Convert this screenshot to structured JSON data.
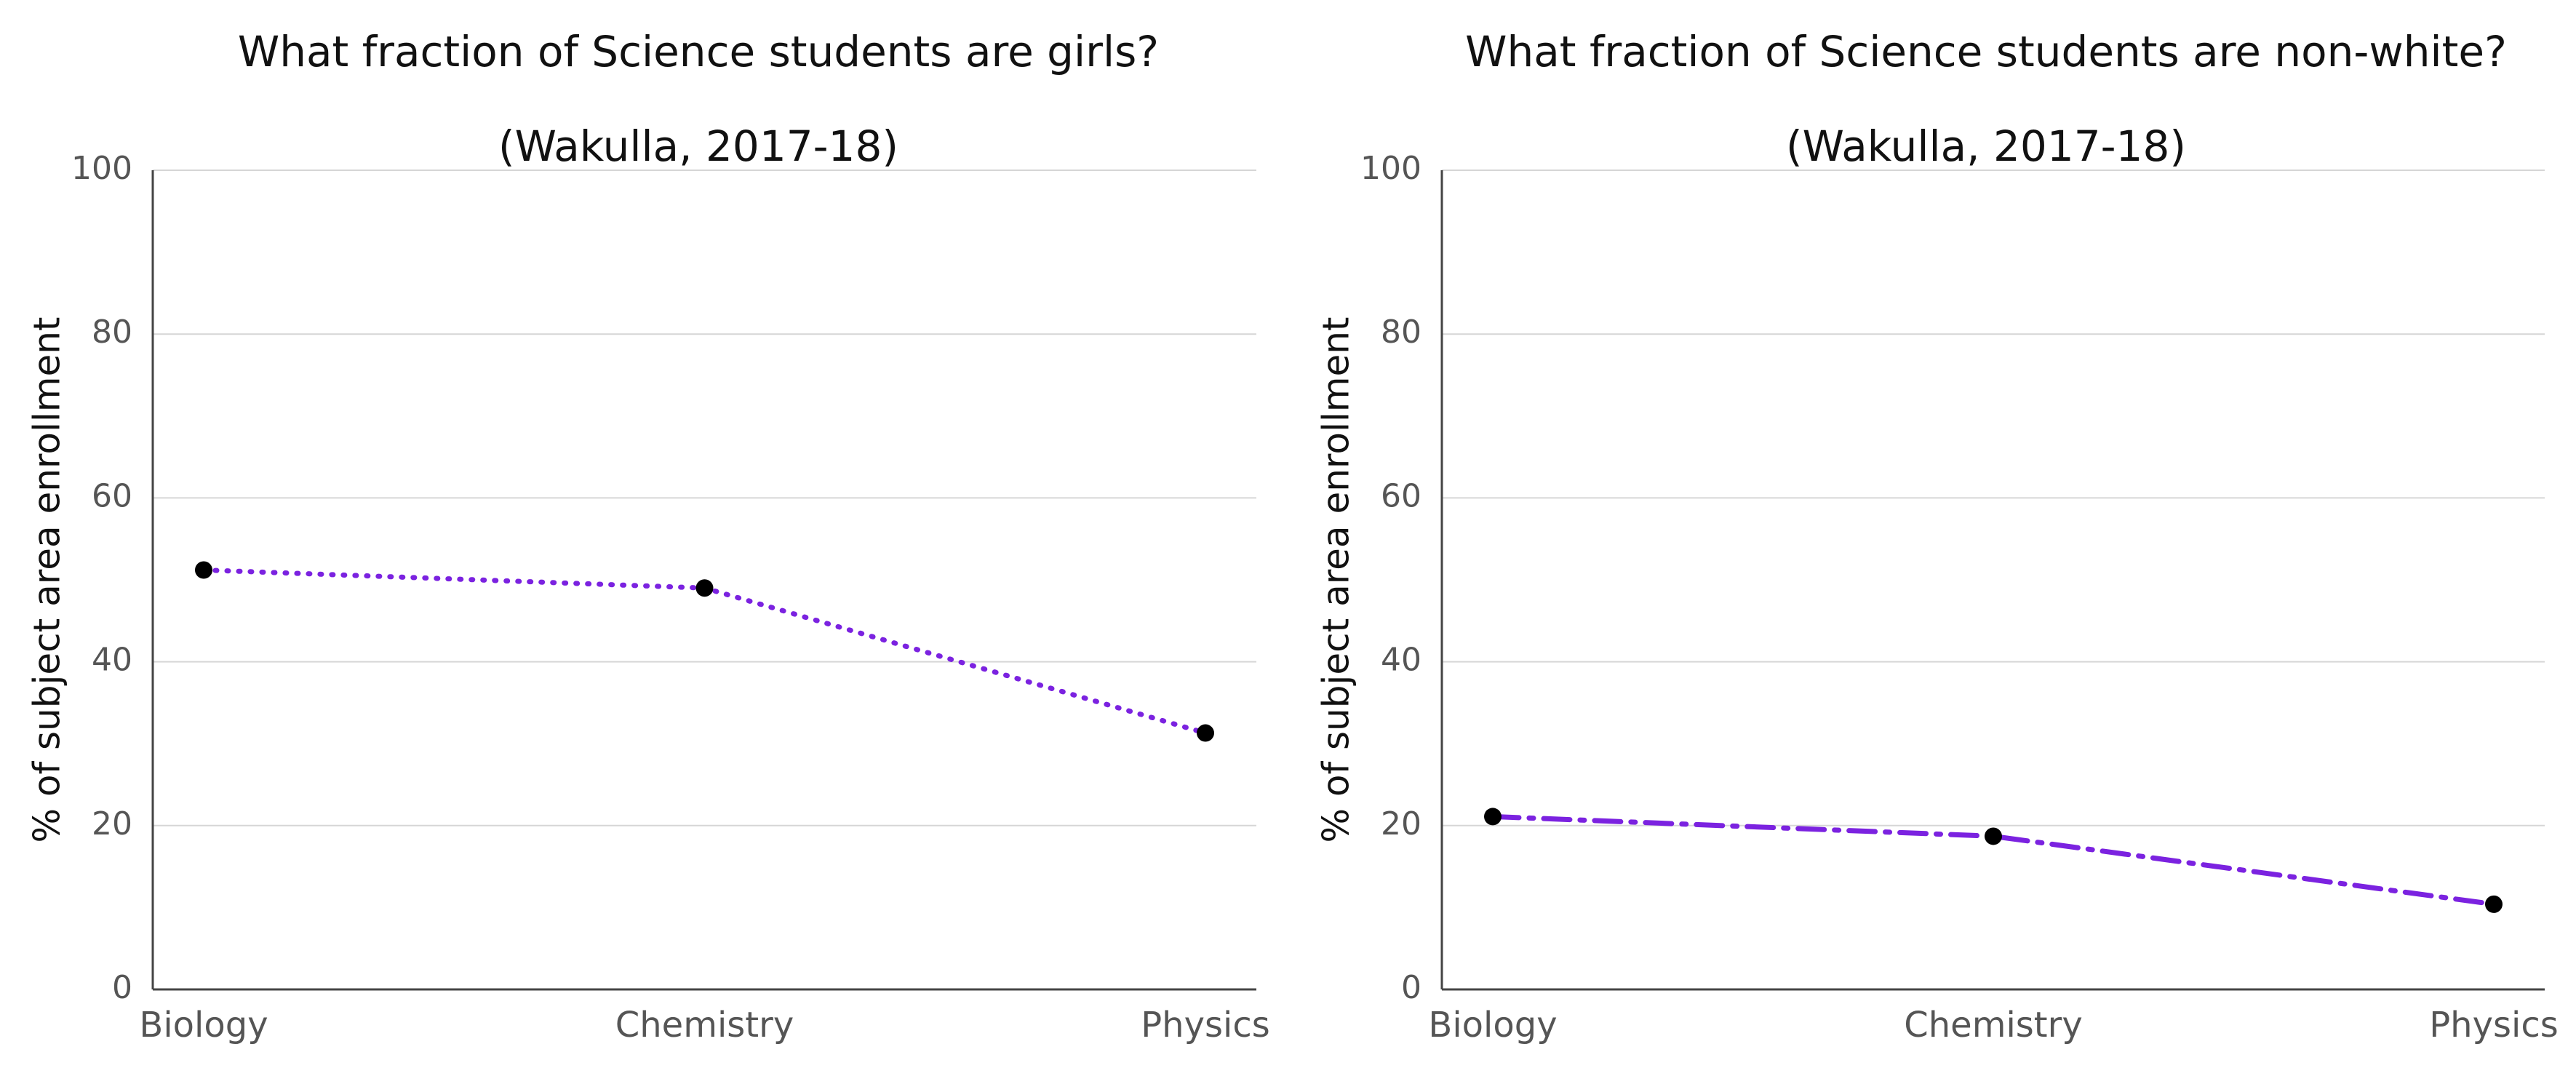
{
  "chart_data": [
    {
      "type": "line",
      "title": "What fraction of Science students are girls?",
      "subtitle": "(Wakulla, 2017-18)",
      "xlabel": "",
      "ylabel": "% of subject area enrollment",
      "categories": [
        "Biology",
        "Chemistry",
        "Physics"
      ],
      "series": [
        {
          "values": [
            51.2,
            49.0,
            31.3
          ],
          "color": "#7b22e0",
          "line_style": "dotted",
          "marker": "circle",
          "marker_color": "#000000"
        }
      ],
      "ylim": [
        0,
        100
      ],
      "yticks": [
        "0",
        "20",
        "40",
        "60",
        "80",
        "100"
      ],
      "grid": "horizontal"
    },
    {
      "type": "line",
      "title": "What fraction of Science students are non-white?",
      "subtitle": "(Wakulla, 2017-18)",
      "xlabel": "",
      "ylabel": "% of subject area enrollment",
      "categories": [
        "Biology",
        "Chemistry",
        "Physics"
      ],
      "series": [
        {
          "values": [
            21.1,
            18.7,
            10.4
          ],
          "color": "#7b22e0",
          "line_style": "dashdot",
          "marker": "circle",
          "marker_color": "#000000"
        }
      ],
      "ylim": [
        0,
        100
      ],
      "yticks": [
        "0",
        "20",
        "40",
        "60",
        "80",
        "100"
      ],
      "grid": "horizontal"
    }
  ]
}
